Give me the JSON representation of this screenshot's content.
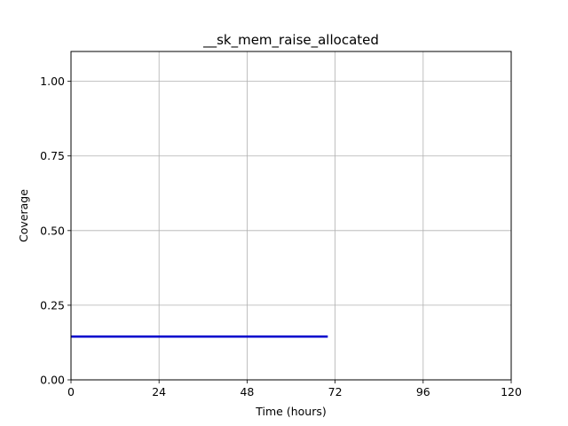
{
  "chart_data": {
    "type": "line",
    "title": "__sk_mem_raise_allocated",
    "xlabel": "Time (hours)",
    "ylabel": "Coverage",
    "xlim": [
      0,
      120
    ],
    "ylim": [
      0,
      1.1
    ],
    "xticks": [
      0,
      24,
      48,
      72,
      96,
      120
    ],
    "yticks": [
      0.0,
      0.25,
      0.5,
      0.75,
      1.0
    ],
    "xtick_labels": [
      "0",
      "24",
      "48",
      "72",
      "96",
      "120"
    ],
    "ytick_labels": [
      "0.00",
      "0.25",
      "0.50",
      "0.75",
      "1.00"
    ],
    "grid": true,
    "series": [
      {
        "color": "#0000cc",
        "x": [
          0,
          70
        ],
        "y": [
          0.145,
          0.145
        ]
      }
    ]
  }
}
